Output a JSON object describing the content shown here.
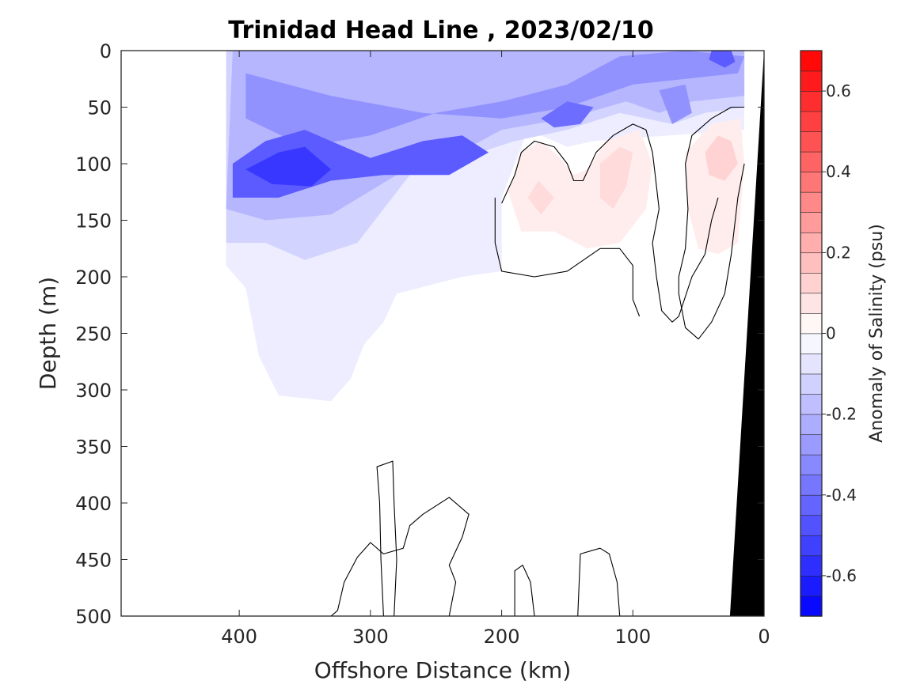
{
  "chart_data": {
    "type": "heatmap",
    "title": "Trinidad Head Line , 2023/02/10",
    "xlabel": "Offshore Distance (km)",
    "ylabel": "Depth (m)",
    "xlim": [
      490,
      0
    ],
    "ylim": [
      0,
      500
    ],
    "x_reversed": true,
    "y_reversed": true,
    "x_ticks": [
      "400",
      "300",
      "200",
      "100",
      "0"
    ],
    "x_tick_values": [
      400,
      300,
      200,
      100,
      0
    ],
    "y_ticks": [
      "0",
      "50",
      "100",
      "150",
      "200",
      "250",
      "300",
      "350",
      "400",
      "450",
      "500"
    ],
    "y_tick_values": [
      0,
      50,
      100,
      150,
      200,
      250,
      300,
      350,
      400,
      450,
      500
    ],
    "colorbar": {
      "label": "Anomaly of Salinity (psu)",
      "range": [
        -0.7,
        0.7
      ],
      "ticks": [
        "-0.6",
        "-0.4",
        "-0.2",
        "0",
        "0.2",
        "0.4",
        "0.6"
      ],
      "tick_values": [
        -0.6,
        -0.4,
        -0.2,
        0,
        0.2,
        0.4,
        0.6
      ],
      "n_levels": 28,
      "min_color": "#0000ff",
      "mid_color": "#ffffff",
      "max_color": "#ff0000"
    },
    "data_extent_km": [
      410,
      10
    ],
    "max_depth_m": 500,
    "features": [
      {
        "kind": "negative_region",
        "anomaly": -0.05,
        "polygon": [
          [
            410,
            0
          ],
          [
            15,
            0
          ],
          [
            15,
            70
          ],
          [
            130,
            80
          ],
          [
            150,
            85
          ],
          [
            180,
            70
          ],
          [
            200,
            130
          ],
          [
            200,
            195
          ],
          [
            230,
            200
          ],
          [
            280,
            215
          ],
          [
            290,
            240
          ],
          [
            305,
            260
          ],
          [
            315,
            290
          ],
          [
            330,
            310
          ],
          [
            370,
            305
          ],
          [
            385,
            270
          ],
          [
            395,
            210
          ],
          [
            410,
            190
          ]
        ]
      },
      {
        "kind": "negative_region",
        "anomaly": -0.12,
        "polygon": [
          [
            410,
            0
          ],
          [
            15,
            0
          ],
          [
            15,
            50
          ],
          [
            45,
            55
          ],
          [
            70,
            65
          ],
          [
            110,
            55
          ],
          [
            150,
            70
          ],
          [
            190,
            80
          ],
          [
            230,
            95
          ],
          [
            270,
            110
          ],
          [
            310,
            170
          ],
          [
            350,
            185
          ],
          [
            380,
            170
          ],
          [
            410,
            170
          ]
        ]
      },
      {
        "kind": "negative_region",
        "anomaly": -0.2,
        "polygon": [
          [
            405,
            0
          ],
          [
            15,
            0
          ],
          [
            15,
            40
          ],
          [
            55,
            45
          ],
          [
            80,
            55
          ],
          [
            105,
            45
          ],
          [
            150,
            60
          ],
          [
            200,
            70
          ],
          [
            240,
            95
          ],
          [
            280,
            110
          ],
          [
            330,
            145
          ],
          [
            380,
            150
          ],
          [
            410,
            140
          ]
        ]
      },
      {
        "kind": "negative_region",
        "anomaly": -0.3,
        "polygon": [
          [
            395,
            20
          ],
          [
            330,
            40
          ],
          [
            260,
            55
          ],
          [
            200,
            60
          ],
          [
            150,
            50
          ],
          [
            100,
            30
          ],
          [
            60,
            25
          ],
          [
            20,
            20
          ],
          [
            15,
            5
          ],
          [
            60,
            0
          ],
          [
            110,
            5
          ],
          [
            150,
            30
          ],
          [
            200,
            45
          ],
          [
            250,
            55
          ],
          [
            300,
            75
          ],
          [
            350,
            85
          ],
          [
            395,
            60
          ]
        ]
      },
      {
        "kind": "negative_region",
        "anomaly": -0.45,
        "polygon": [
          [
            405,
            100
          ],
          [
            380,
            80
          ],
          [
            350,
            70
          ],
          [
            320,
            85
          ],
          [
            300,
            95
          ],
          [
            260,
            80
          ],
          [
            230,
            75
          ],
          [
            210,
            90
          ],
          [
            240,
            110
          ],
          [
            290,
            110
          ],
          [
            330,
            115
          ],
          [
            370,
            130
          ],
          [
            405,
            130
          ]
        ]
      },
      {
        "kind": "negative_region",
        "anomaly": -0.55,
        "polygon": [
          [
            395,
            105
          ],
          [
            370,
            90
          ],
          [
            350,
            85
          ],
          [
            330,
            105
          ],
          [
            345,
            120
          ],
          [
            375,
            118
          ]
        ]
      },
      {
        "kind": "negative_region",
        "anomaly": -0.4,
        "polygon": [
          [
            170,
            60
          ],
          [
            150,
            45
          ],
          [
            130,
            50
          ],
          [
            140,
            65
          ],
          [
            160,
            68
          ]
        ]
      },
      {
        "kind": "negative_region",
        "anomaly": -0.45,
        "polygon": [
          [
            40,
            0
          ],
          [
            25,
            0
          ],
          [
            22,
            10
          ],
          [
            30,
            15
          ],
          [
            42,
            8
          ]
        ]
      },
      {
        "kind": "negative_region",
        "anomaly": -0.3,
        "polygon": [
          [
            80,
            35
          ],
          [
            60,
            30
          ],
          [
            55,
            55
          ],
          [
            70,
            65
          ]
        ]
      },
      {
        "kind": "positive_region",
        "anomaly": 0.05,
        "polygon": [
          [
            195,
            125
          ],
          [
            185,
            90
          ],
          [
            170,
            80
          ],
          [
            155,
            95
          ],
          [
            145,
            110
          ],
          [
            135,
            105
          ],
          [
            120,
            80
          ],
          [
            95,
            70
          ],
          [
            85,
            100
          ],
          [
            90,
            140
          ],
          [
            110,
            170
          ],
          [
            135,
            175
          ],
          [
            160,
            160
          ],
          [
            185,
            160
          ]
        ]
      },
      {
        "kind": "positive_region",
        "anomaly": 0.1,
        "polygon": [
          [
            180,
            130
          ],
          [
            172,
            115
          ],
          [
            160,
            130
          ],
          [
            170,
            145
          ]
        ]
      },
      {
        "kind": "positive_region",
        "anomaly": 0.1,
        "polygon": [
          [
            125,
            100
          ],
          [
            110,
            85
          ],
          [
            100,
            90
          ],
          [
            105,
            120
          ],
          [
            115,
            140
          ],
          [
            125,
            130
          ]
        ]
      },
      {
        "kind": "positive_region",
        "anomaly": 0.05,
        "polygon": [
          [
            60,
            90
          ],
          [
            40,
            65
          ],
          [
            18,
            60
          ],
          [
            15,
            100
          ],
          [
            20,
            170
          ],
          [
            35,
            180
          ],
          [
            50,
            175
          ],
          [
            58,
            140
          ]
        ]
      },
      {
        "kind": "positive_region",
        "anomaly": 0.12,
        "polygon": [
          [
            45,
            90
          ],
          [
            35,
            75
          ],
          [
            25,
            80
          ],
          [
            20,
            100
          ],
          [
            30,
            115
          ],
          [
            42,
            110
          ]
        ]
      }
    ],
    "zero_contours": [
      [
        [
          200,
          135
        ],
        [
          190,
          110
        ],
        [
          185,
          90
        ],
        [
          175,
          80
        ],
        [
          160,
          85
        ],
        [
          150,
          100
        ],
        [
          145,
          115
        ],
        [
          138,
          115
        ],
        [
          128,
          90
        ],
        [
          115,
          75
        ],
        [
          100,
          65
        ],
        [
          90,
          70
        ],
        [
          85,
          90
        ],
        [
          83,
          110
        ],
        [
          80,
          140
        ],
        [
          85,
          170
        ],
        [
          82,
          200
        ],
        [
          78,
          230
        ],
        [
          70,
          240
        ],
        [
          65,
          235
        ],
        [
          55,
          200
        ],
        [
          45,
          180
        ],
        [
          40,
          150
        ],
        [
          35,
          130
        ]
      ],
      [
        [
          205,
          130
        ],
        [
          205,
          170
        ],
        [
          200,
          195
        ],
        [
          175,
          200
        ],
        [
          150,
          195
        ],
        [
          125,
          175
        ],
        [
          110,
          175
        ],
        [
          100,
          190
        ],
        [
          100,
          220
        ],
        [
          95,
          235
        ]
      ],
      [
        [
          15,
          50
        ],
        [
          25,
          50
        ],
        [
          40,
          60
        ],
        [
          55,
          75
        ],
        [
          60,
          100
        ],
        [
          58,
          140
        ],
        [
          60,
          175
        ],
        [
          65,
          200
        ],
        [
          65,
          215
        ],
        [
          60,
          245
        ],
        [
          50,
          255
        ],
        [
          40,
          240
        ],
        [
          30,
          215
        ],
        [
          25,
          180
        ],
        [
          20,
          130
        ],
        [
          15,
          100
        ]
      ],
      [
        [
          290,
          500
        ],
        [
          292,
          450
        ],
        [
          293,
          400
        ],
        [
          295,
          368
        ],
        [
          283,
          363
        ],
        [
          282,
          400
        ],
        [
          280,
          450
        ],
        [
          282,
          500
        ]
      ],
      [
        [
          240,
          500
        ],
        [
          235,
          470
        ],
        [
          240,
          455
        ],
        [
          230,
          430
        ],
        [
          225,
          410
        ],
        [
          240,
          395
        ],
        [
          260,
          410
        ],
        [
          270,
          420
        ],
        [
          275,
          440
        ],
        [
          290,
          445
        ],
        [
          300,
          435
        ],
        [
          310,
          448
        ],
        [
          320,
          470
        ],
        [
          325,
          495
        ],
        [
          330,
          500
        ]
      ],
      [
        [
          175,
          500
        ],
        [
          178,
          470
        ],
        [
          184,
          455
        ],
        [
          190,
          460
        ],
        [
          190,
          500
        ]
      ],
      [
        [
          110,
          500
        ],
        [
          112,
          470
        ],
        [
          118,
          445
        ],
        [
          125,
          440
        ],
        [
          140,
          445
        ],
        [
          142,
          500
        ]
      ],
      [
        [
          340,
          500
        ],
        [
          350,
          500
        ]
      ]
    ]
  }
}
